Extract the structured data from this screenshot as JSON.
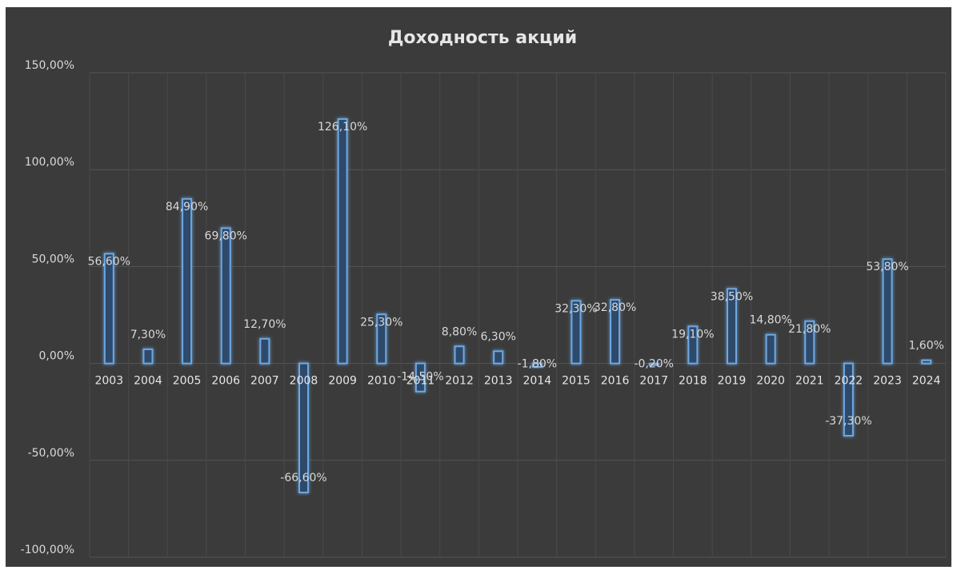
{
  "chart_data": {
    "type": "bar",
    "title": "Доходность акций",
    "categories": [
      "2003",
      "2004",
      "2005",
      "2006",
      "2007",
      "2008",
      "2009",
      "2010",
      "2011",
      "2012",
      "2013",
      "2014",
      "2015",
      "2016",
      "2017",
      "2018",
      "2019",
      "2020",
      "2021",
      "2022",
      "2023",
      "2024"
    ],
    "values": [
      56.6,
      7.3,
      84.9,
      69.8,
      12.7,
      -66.6,
      126.1,
      25.3,
      -14.5,
      8.8,
      6.3,
      -1.8,
      32.3,
      32.8,
      -0.2,
      19.1,
      38.5,
      14.8,
      21.8,
      -37.3,
      53.8,
      1.6
    ],
    "data_labels": [
      "56,60%",
      "7,30%",
      "84,90%",
      "69,80%",
      "12,70%",
      "-66,60%",
      "126,10%",
      "25,30%",
      "-14,50%",
      "8,80%",
      "6,30%",
      "-1,80%",
      "32,30%",
      "32,80%",
      "-0,20%",
      "19,10%",
      "38,50%",
      "14,80%",
      "21,80%",
      "-37,30%",
      "53,80%",
      "1,60%"
    ],
    "yticks": [
      150,
      100,
      50,
      0,
      -50,
      -100
    ],
    "ytick_labels": [
      "150,00%",
      "100,00%",
      "50,00%",
      "0,00%",
      "-50,00%",
      "-100,00%"
    ],
    "ylim": [
      -100,
      150
    ],
    "xlabel": "",
    "ylabel": "",
    "grid": true,
    "legend": "none",
    "colors": {
      "background": "#3b3b3b",
      "bar_fill": "#2d4a6b",
      "bar_stroke": "#6ea8e0",
      "gridline": "#555555",
      "text": "#d9d9d9"
    }
  }
}
